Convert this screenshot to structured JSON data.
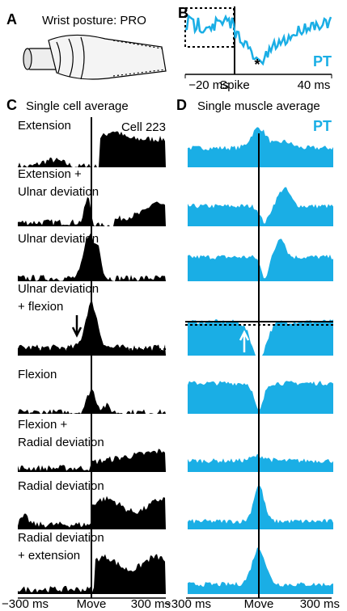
{
  "panels": {
    "a": {
      "label": "A",
      "caption": "Wrist posture: PRO"
    },
    "b": {
      "label": "B",
      "muscle": "PT",
      "asterisk": "*",
      "axis": [
        "−20 ms",
        "Spike",
        "40 ms"
      ]
    },
    "c": {
      "label": "C",
      "title": "Single cell average",
      "cell": "Cell 223",
      "conditions": [
        [
          "Extension"
        ],
        [
          "Extension +",
          "Ulnar deviation"
        ],
        [
          "Ulnar deviation"
        ],
        [
          "Ulnar deviation",
          "+ flexion"
        ],
        [
          "Flexion"
        ],
        [
          "Flexion +",
          "Radial deviation"
        ],
        [
          "Radial deviation"
        ],
        [
          "Radial deviation",
          "+ extension"
        ]
      ],
      "axis": [
        "−300 ms",
        "Move",
        "300 ms"
      ]
    },
    "d": {
      "label": "D",
      "title": "Single muscle average",
      "muscle": "PT",
      "axis": [
        "−300 ms",
        "Move",
        "300 ms"
      ]
    }
  }
}
